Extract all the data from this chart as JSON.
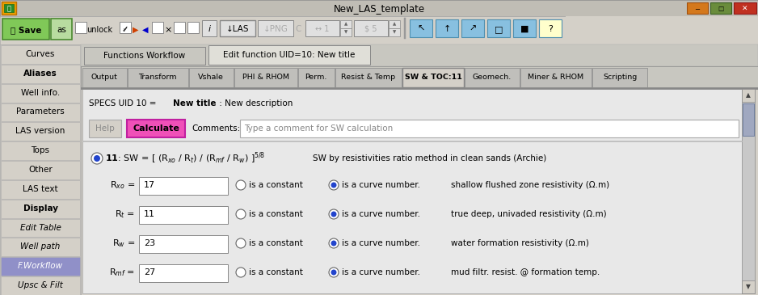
{
  "title": "New_LAS_template",
  "bg_color": "#d4d0c8",
  "left_buttons": [
    "Curves",
    "Aliases",
    "Well info.",
    "Parameters",
    "LAS version",
    "Tops",
    "Other",
    "LAS text",
    "Display",
    "Edit Table",
    "Well path",
    "F.Workflow",
    "Upsc & Filt"
  ],
  "left_bold": [
    "Aliases",
    "Display"
  ],
  "left_italic": [
    "Edit Table",
    "Well path",
    "F.Workflow",
    "Upsc & Filt"
  ],
  "left_highlight": [
    "F.Workflow"
  ],
  "tab1_label": "Functions Workflow",
  "tab2_label": "Edit function UID=10: New title",
  "subtabs": [
    "Output",
    "Transform",
    "Vshale",
    "PHI & RHOM",
    "Perm.",
    "Resist & Temp",
    "SW & TOC:11",
    "Geomech.",
    "Miner & RHOM",
    "Scripting"
  ],
  "active_subtab": "SW & TOC:11",
  "comments_placeholder": "Type a comment for SW calculation",
  "formula_desc": "SW by resistivities ratio method in clean sands (Archie)",
  "row_labels": [
    "R_{xo}",
    "R_t",
    "R_w",
    "R_{mf}"
  ],
  "row_values": [
    "17",
    "11",
    "23",
    "27"
  ],
  "row_descs": [
    "shallow flushed zone resistivity (Ω.m)",
    "true deep, univaded resistivity (Ω.m)",
    "water formation resistivity (Ω.m)",
    "mud filtr. resist. @ formation temp."
  ],
  "win_min_color": "#d4781c",
  "win_restore_color": "#6a8c3c",
  "win_close_color": "#c03020",
  "titlebar_bg": "#c0bdb5",
  "toolbar_bg": "#d4d0c8",
  "content_bg": "#d4d0c8",
  "inner_bg": "#e8e8e8",
  "active_tab_bg": "#d4d0c8",
  "inactive_tab_bg": "#c0bfbb",
  "calculate_bg": "#f050b8",
  "calculate_border": "#c020a0"
}
